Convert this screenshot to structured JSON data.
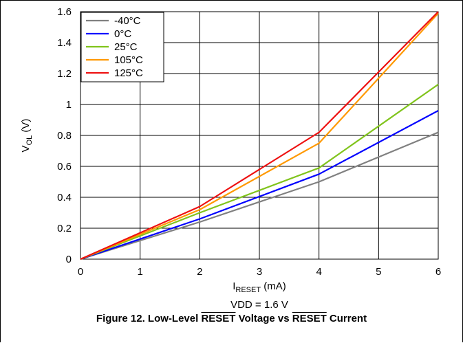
{
  "chart_data": {
    "type": "line",
    "xlabel_main": "I",
    "xlabel_sub": "RESET",
    "xlabel_unit": " (mA)",
    "ylabel_main": "V",
    "ylabel_sub": "OL",
    "ylabel_unit": " (V)",
    "condition": "VDD = 1.6 V",
    "xlim": [
      0,
      6
    ],
    "ylim": [
      0,
      1.6
    ],
    "x_ticks": [
      "0",
      "1",
      "2",
      "3",
      "4",
      "5",
      "6"
    ],
    "y_ticks": [
      "0",
      "0.2",
      "0.4",
      "0.6",
      "0.8",
      "1",
      "1.2",
      "1.4",
      "1.6"
    ],
    "grid": true,
    "legend_position": "top-left",
    "series": [
      {
        "name": "-40°C",
        "color": "#808080",
        "points": [
          [
            0,
            0
          ],
          [
            2,
            0.24
          ],
          [
            4,
            0.5
          ],
          [
            6,
            0.82
          ]
        ]
      },
      {
        "name": "0°C",
        "color": "#0000ff",
        "points": [
          [
            0,
            0
          ],
          [
            2,
            0.26
          ],
          [
            4,
            0.55
          ],
          [
            6,
            0.96
          ]
        ]
      },
      {
        "name": "25°C",
        "color": "#80c41c",
        "points": [
          [
            0,
            0
          ],
          [
            2,
            0.3
          ],
          [
            4,
            0.59
          ],
          [
            6,
            1.13
          ]
        ]
      },
      {
        "name": "105°C",
        "color": "#ff9900",
        "points": [
          [
            0,
            0
          ],
          [
            2,
            0.32
          ],
          [
            4,
            0.75
          ],
          [
            6,
            1.59
          ]
        ]
      },
      {
        "name": "125°C",
        "color": "#ee1111",
        "points": [
          [
            0,
            0
          ],
          [
            2,
            0.34
          ],
          [
            4,
            0.82
          ],
          [
            6,
            1.6
          ]
        ]
      }
    ]
  },
  "caption": {
    "prefix": "Figure 12. Low-Level ",
    "over1": "RESET",
    "middle": " Voltage vs ",
    "over2": "RESET",
    "suffix": " Current"
  }
}
